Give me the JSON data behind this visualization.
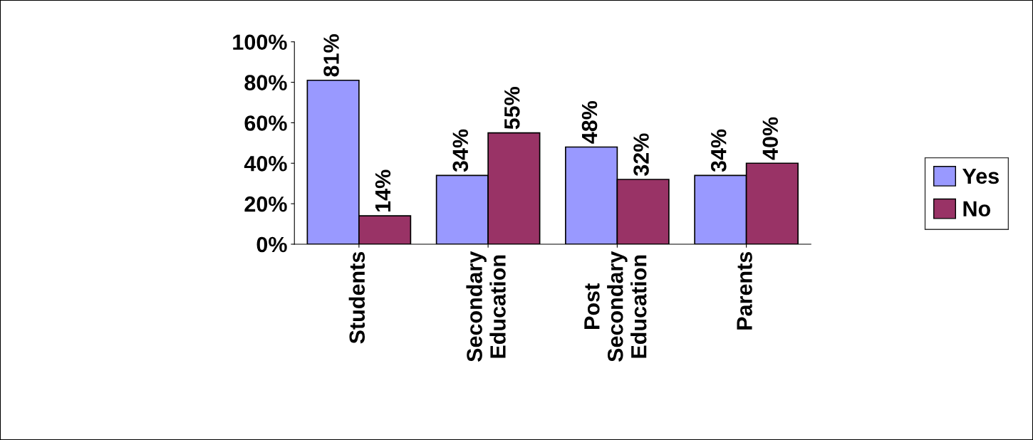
{
  "chart_data": {
    "type": "bar",
    "categories": [
      "Students",
      "Secondary\nEducation",
      "Post\nSecondary\nEducation",
      "Parents"
    ],
    "series": [
      {
        "name": "Yes",
        "color": "#9999ff",
        "values": [
          81,
          34,
          48,
          34
        ],
        "value_labels": [
          "81%",
          "34%",
          "48%",
          "34%"
        ]
      },
      {
        "name": "No",
        "color": "#993366",
        "values": [
          14,
          55,
          32,
          40
        ],
        "value_labels": [
          "14%",
          "55%",
          "32%",
          "40%"
        ]
      }
    ],
    "ylim": [
      0,
      100
    ],
    "yticks": [
      {
        "value": 0,
        "label": "0%"
      },
      {
        "value": 20,
        "label": "20%"
      },
      {
        "value": 40,
        "label": "40%"
      },
      {
        "value": 60,
        "label": "60%"
      },
      {
        "value": 80,
        "label": "80%"
      },
      {
        "value": 100,
        "label": "100%"
      }
    ],
    "grid": false,
    "legend": "right"
  }
}
